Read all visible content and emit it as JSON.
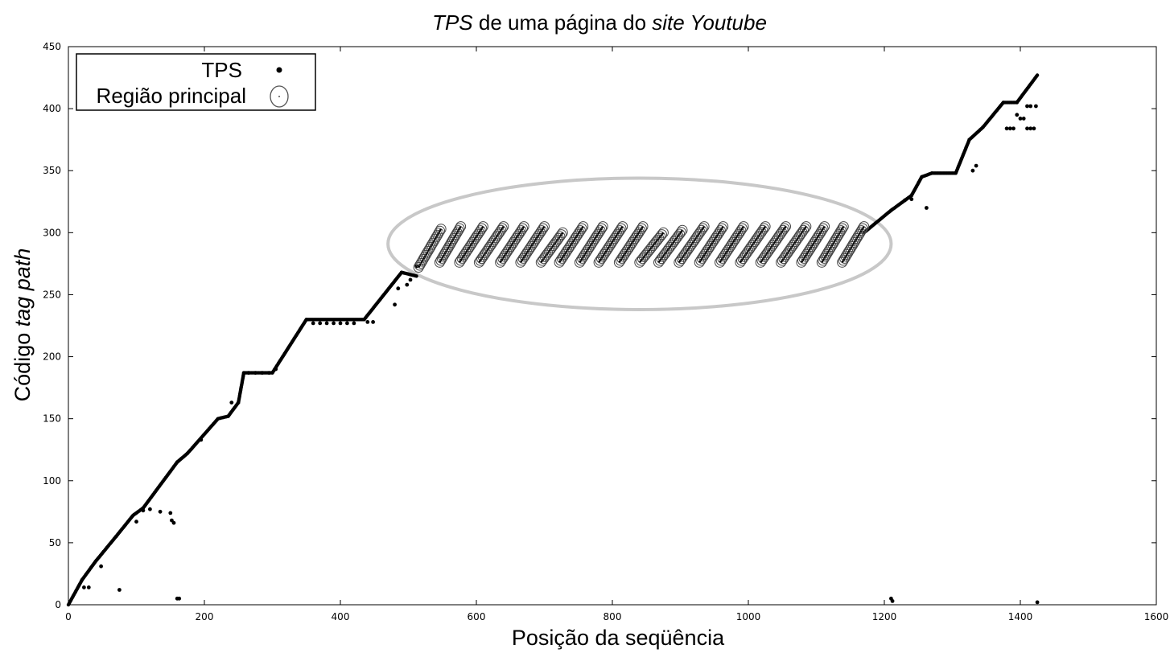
{
  "chart_data": {
    "type": "scatter",
    "title_parts": [
      {
        "text": "TPS",
        "italic": true
      },
      {
        "text": " de uma página do ",
        "italic": false
      },
      {
        "text": "site Youtube",
        "italic": true
      }
    ],
    "xlabel": "Posição da seqüência",
    "ylabel_parts": [
      {
        "text": "Código ",
        "italic": false
      },
      {
        "text": "tag path",
        "italic": true
      }
    ],
    "xlim": [
      0,
      1600
    ],
    "ylim": [
      0,
      450
    ],
    "xticks": [
      0,
      200,
      400,
      600,
      800,
      1000,
      1200,
      1400,
      1600
    ],
    "yticks": [
      0,
      50,
      100,
      150,
      200,
      250,
      300,
      350,
      400,
      450
    ],
    "grid": false,
    "legend_position": "top-left",
    "colors": {
      "tps": "#000000",
      "region": "#444444",
      "ellipse": "#c8c8c8"
    },
    "series": [
      {
        "name": "TPS",
        "marker": "filled-dot",
        "segments": [
          [
            0,
            0,
            20,
            20
          ],
          [
            20,
            20,
            40,
            35
          ],
          [
            40,
            35,
            70,
            55
          ],
          [
            70,
            55,
            95,
            72
          ],
          [
            95,
            72,
            110,
            78
          ],
          [
            110,
            78,
            160,
            115
          ],
          [
            160,
            115,
            175,
            122
          ],
          [
            175,
            122,
            220,
            150
          ],
          [
            220,
            150,
            235,
            152
          ],
          [
            235,
            152,
            250,
            163
          ],
          [
            250,
            163,
            258,
            187
          ],
          [
            258,
            187,
            300,
            187
          ],
          [
            300,
            187,
            350,
            230
          ],
          [
            350,
            230,
            435,
            230
          ],
          [
            435,
            230,
            490,
            268
          ],
          [
            490,
            268,
            512,
            265
          ],
          [
            1170,
            300,
            1210,
            318
          ],
          [
            1210,
            318,
            1240,
            330
          ],
          [
            1240,
            330,
            1255,
            345
          ],
          [
            1255,
            345,
            1270,
            348
          ],
          [
            1270,
            348,
            1305,
            348
          ],
          [
            1305,
            348,
            1325,
            375
          ],
          [
            1325,
            375,
            1345,
            385
          ],
          [
            1345,
            385,
            1375,
            405
          ],
          [
            1375,
            405,
            1395,
            405
          ],
          [
            1395,
            405,
            1425,
            427
          ]
        ],
        "points": [
          [
            23,
            14
          ],
          [
            30,
            14
          ],
          [
            48,
            31
          ],
          [
            75,
            12
          ],
          [
            100,
            67
          ],
          [
            110,
            76
          ],
          [
            120,
            77
          ],
          [
            135,
            75
          ],
          [
            150,
            74
          ],
          [
            152,
            68
          ],
          [
            155,
            66
          ],
          [
            160,
            5
          ],
          [
            163,
            5
          ],
          [
            195,
            133
          ],
          [
            240,
            163
          ],
          [
            265,
            187
          ],
          [
            275,
            187
          ],
          [
            285,
            187
          ],
          [
            295,
            187
          ],
          [
            305,
            190
          ],
          [
            360,
            227
          ],
          [
            370,
            227
          ],
          [
            380,
            227
          ],
          [
            390,
            227
          ],
          [
            400,
            227
          ],
          [
            410,
            227
          ],
          [
            420,
            227
          ],
          [
            440,
            228
          ],
          [
            448,
            228
          ],
          [
            480,
            242
          ],
          [
            485,
            255
          ],
          [
            498,
            258
          ],
          [
            503,
            262
          ],
          [
            512,
            273
          ],
          [
            1210,
            5
          ],
          [
            1212,
            3
          ],
          [
            1230,
            326
          ],
          [
            1240,
            327
          ],
          [
            1262,
            320
          ],
          [
            1330,
            350
          ],
          [
            1335,
            354
          ],
          [
            1380,
            384
          ],
          [
            1385,
            384
          ],
          [
            1390,
            384
          ],
          [
            1395,
            395
          ],
          [
            1400,
            392
          ],
          [
            1405,
            392
          ],
          [
            1410,
            402
          ],
          [
            1415,
            402
          ],
          [
            1410,
            384
          ],
          [
            1415,
            384
          ],
          [
            1420,
            384
          ],
          [
            1423,
            402
          ],
          [
            1425,
            2
          ]
        ]
      },
      {
        "name": "Região principal",
        "marker": "open-circle",
        "segments": [
          [
            515,
            272,
            548,
            303
          ],
          [
            546,
            276,
            577,
            305
          ],
          [
            575,
            276,
            610,
            305
          ],
          [
            604,
            276,
            640,
            305
          ],
          [
            635,
            276,
            670,
            305
          ],
          [
            665,
            276,
            700,
            305
          ],
          [
            695,
            276,
            727,
            300
          ],
          [
            722,
            276,
            757,
            305
          ],
          [
            752,
            276,
            786,
            305
          ],
          [
            780,
            276,
            815,
            305
          ],
          [
            810,
            276,
            845,
            305
          ],
          [
            840,
            276,
            875,
            300
          ],
          [
            868,
            276,
            903,
            302
          ],
          [
            898,
            276,
            935,
            305
          ],
          [
            928,
            276,
            963,
            305
          ],
          [
            958,
            276,
            993,
            305
          ],
          [
            988,
            276,
            1025,
            305
          ],
          [
            1018,
            276,
            1055,
            305
          ],
          [
            1048,
            276,
            1085,
            305
          ],
          [
            1078,
            276,
            1112,
            305
          ],
          [
            1108,
            276,
            1140,
            305
          ],
          [
            1138,
            276,
            1170,
            305
          ]
        ]
      }
    ],
    "annotation": {
      "shape": "ellipse",
      "cx": 840,
      "cy": 291,
      "rx": 370,
      "ry": 53
    }
  }
}
